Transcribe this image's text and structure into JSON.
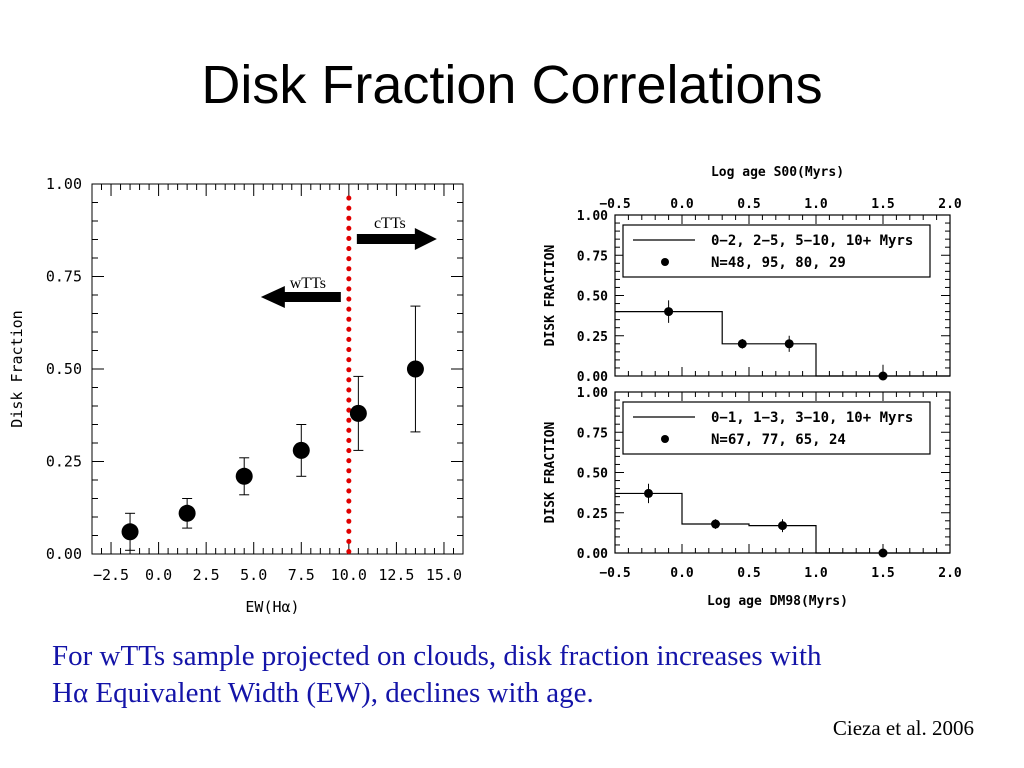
{
  "slide": {
    "title": "Disk Fraction Correlations",
    "caption_line1": "For wTTs sample projected on clouds, disk fraction increases with",
    "caption_line2": "Hα Equivalent Width (EW), declines with age.",
    "citation": "Cieza et al. 2006"
  },
  "colors": {
    "caption": "#1414a8",
    "threshold_line": "#e00000"
  },
  "chart_data": [
    {
      "type": "scatter",
      "xlabel": "EW(Hα)",
      "ylabel": "Disk Fraction",
      "xlim": [
        -3.5,
        16
      ],
      "ylim": [
        0,
        1
      ],
      "xticks": [
        "−2.5",
        "0.0",
        "2.5",
        "5.0",
        "7.5",
        "10.0",
        "12.5",
        "15.0"
      ],
      "xtick_values": [
        -2.5,
        0,
        2.5,
        5,
        7.5,
        10,
        12.5,
        15
      ],
      "yticks": [
        "0.00",
        "0.25",
        "0.50",
        "0.75",
        "1.00"
      ],
      "ytick_values": [
        0,
        0.25,
        0.5,
        0.75,
        1
      ],
      "points": [
        {
          "x": -1.5,
          "y": 0.06,
          "err_low": 0.05,
          "err_high": 0.05
        },
        {
          "x": 1.5,
          "y": 0.11,
          "err_low": 0.04,
          "err_high": 0.04
        },
        {
          "x": 4.5,
          "y": 0.21,
          "err_low": 0.05,
          "err_high": 0.05
        },
        {
          "x": 7.5,
          "y": 0.28,
          "err_low": 0.07,
          "err_high": 0.07
        },
        {
          "x": 10.5,
          "y": 0.38,
          "err_low": 0.1,
          "err_high": 0.1
        },
        {
          "x": 13.5,
          "y": 0.5,
          "err_low": 0.17,
          "err_high": 0.17
        }
      ],
      "threshold_x": 10,
      "annotations": [
        {
          "text": "cTTs",
          "direction": "right"
        },
        {
          "text": "wTTs",
          "direction": "left"
        }
      ]
    },
    {
      "type": "line",
      "subtype": "step-with-points",
      "top_xlabel": "Log age S00(Myrs)",
      "ylabel": "DISK FRACTION",
      "xlim": [
        -0.5,
        2.0
      ],
      "ylim": [
        0,
        1
      ],
      "xticks": [
        "−0.5",
        "0.0",
        "0.5",
        "1.0",
        "1.5",
        "2.0"
      ],
      "xtick_values": [
        -0.5,
        0,
        0.5,
        1,
        1.5,
        2
      ],
      "yticks": [
        "0.00",
        "0.25",
        "0.50",
        "0.75",
        "1.00"
      ],
      "ytick_values": [
        0,
        0.25,
        0.5,
        0.75,
        1
      ],
      "legend_line": "0−2, 2−5, 5−10, 10+ Myrs",
      "legend_points": "N=48, 95, 80, 29",
      "legend_position": "top",
      "steps": [
        {
          "x0": -0.5,
          "x1": 0.3,
          "y": 0.4
        },
        {
          "x0": 0.3,
          "x1": 1.0,
          "y": 0.2
        },
        {
          "x0": 1.0,
          "x1": 2.0,
          "y": 0.0
        }
      ],
      "points": [
        {
          "x": -0.1,
          "y": 0.4,
          "err": 0.07
        },
        {
          "x": 0.45,
          "y": 0.2,
          "err": 0.03
        },
        {
          "x": 0.8,
          "y": 0.2,
          "err": 0.05
        },
        {
          "x": 1.5,
          "y": 0.0,
          "err": 0.07
        }
      ]
    },
    {
      "type": "line",
      "subtype": "step-with-points",
      "xlabel": "Log age DM98(Myrs)",
      "ylabel": "DISK FRACTION",
      "xlim": [
        -0.5,
        2.0
      ],
      "ylim": [
        0,
        1
      ],
      "xticks": [
        "−0.5",
        "0.0",
        "0.5",
        "1.0",
        "1.5",
        "2.0"
      ],
      "xtick_values": [
        -0.5,
        0,
        0.5,
        1,
        1.5,
        2
      ],
      "yticks": [
        "0.00",
        "0.25",
        "0.50",
        "0.75",
        "1.00"
      ],
      "ytick_values": [
        0,
        0.25,
        0.5,
        0.75,
        1
      ],
      "legend_line": "0−1, 1−3, 3−10, 10+ Myrs",
      "legend_points": "N=67, 77, 65, 24",
      "legend_position": "top",
      "steps": [
        {
          "x0": -0.5,
          "x1": 0.0,
          "y": 0.37
        },
        {
          "x0": 0.0,
          "x1": 0.5,
          "y": 0.18
        },
        {
          "x0": 0.5,
          "x1": 1.0,
          "y": 0.17
        },
        {
          "x0": 1.0,
          "x1": 2.0,
          "y": 0.0
        }
      ],
      "points": [
        {
          "x": -0.25,
          "y": 0.37,
          "err": 0.06
        },
        {
          "x": 0.25,
          "y": 0.18,
          "err": 0.03
        },
        {
          "x": 0.75,
          "y": 0.17,
          "err": 0.04
        },
        {
          "x": 1.5,
          "y": 0.0,
          "err": 0.04
        }
      ]
    }
  ]
}
